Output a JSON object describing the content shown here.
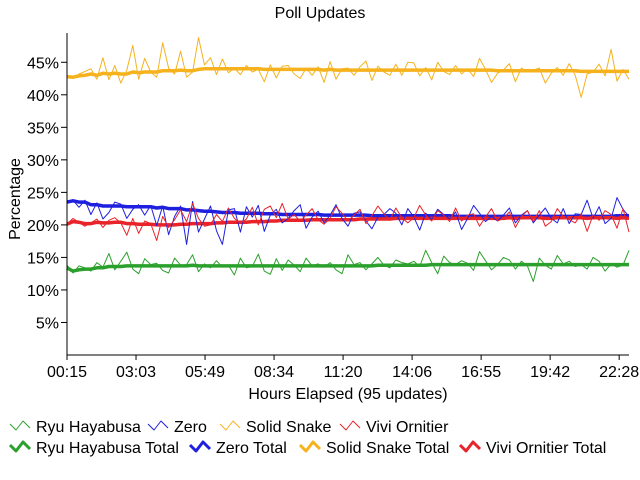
{
  "chart_data": {
    "type": "line",
    "title": "Poll Updates",
    "xlabel": "Hours Elapsed (95 updates)",
    "ylabel": "Percentage",
    "x_tick_labels": [
      "00:15",
      "03:03",
      "05:49",
      "08:34",
      "11:20",
      "14:06",
      "16:55",
      "19:42",
      "22:28"
    ],
    "y_tick_labels": [
      "5%",
      "10%",
      "15%",
      "20%",
      "25%",
      "30%",
      "35%",
      "40%",
      "45%"
    ],
    "y_tick_values": [
      5,
      10,
      15,
      20,
      25,
      30,
      35,
      40,
      45
    ],
    "ylim": [
      0,
      49.5
    ],
    "num_points": 95,
    "grid": false,
    "legend_position": "bottom",
    "series": [
      {
        "name": "Ryu Hayabusa",
        "kind": "update",
        "color": "#2ca02c",
        "icon": "thin-check-line",
        "values": [
          13.8,
          12.6,
          13.7,
          13.4,
          12.9,
          14.2,
          13.5,
          15.6,
          13.1,
          14.4,
          15.8,
          13.2,
          12.5,
          14.8,
          13.9,
          14.1,
          13.0,
          12.6,
          14.9,
          13.8,
          13.9,
          15.4,
          12.8,
          14.0,
          13.4,
          14.5,
          13.5,
          13.8,
          12.3,
          14.9,
          13.4,
          13.6,
          15.5,
          12.9,
          12.4,
          14.8,
          13.0,
          14.6,
          13.8,
          12.8,
          14.9,
          13.7,
          14.0,
          13.5,
          14.2,
          13.1,
          12.5,
          15.4,
          13.9,
          14.2,
          13.1,
          14.0,
          15.0,
          13.8,
          13.4,
          14.6,
          14.2,
          14.0,
          14.4,
          13.6,
          16.1,
          14.2,
          12.5,
          15.2,
          14.2,
          13.9,
          14.5,
          14.1,
          13.0,
          15.9,
          14.5,
          13.1,
          13.9,
          15.0,
          14.6,
          13.2,
          14.4,
          13.7,
          11.3,
          14.9,
          13.8,
          13.2,
          15.3,
          14.0,
          14.4,
          13.6,
          13.9,
          13.2,
          15.0,
          14.4,
          12.9,
          14.0,
          13.5,
          13.8,
          16.1
        ]
      },
      {
        "name": "Zero",
        "kind": "update",
        "color": "#1f1fe0",
        "icon": "thin-check-line",
        "values": [
          23.5,
          23.8,
          22.7,
          23.8,
          21.6,
          23.4,
          20.9,
          21.9,
          23.5,
          23.2,
          21.0,
          22.4,
          23.1,
          21.5,
          23.0,
          19.9,
          22.9,
          18.5,
          21.3,
          22.9,
          17.0,
          23.6,
          18.9,
          20.9,
          22.9,
          19.1,
          17.0,
          22.3,
          22.5,
          18.9,
          22.8,
          21.2,
          23.0,
          19.0,
          21.5,
          22.4,
          20.3,
          21.0,
          22.2,
          23.1,
          19.5,
          21.2,
          22.1,
          20.3,
          21.5,
          23.1,
          21.0,
          19.8,
          21.8,
          22.0,
          20.6,
          19.4,
          21.2,
          21.6,
          22.5,
          21.8,
          20.0,
          22.5,
          21.2,
          19.2,
          21.8,
          20.8,
          22.4,
          21.6,
          20.9,
          22.0,
          19.3,
          21.0,
          23.0,
          21.8,
          20.5,
          21.3,
          20.6,
          21.5,
          22.6,
          20.3,
          21.5,
          22.2,
          20.3,
          21.5,
          22.6,
          21.0,
          20.3,
          22.5,
          20.2,
          21.7,
          21.6,
          23.8,
          21.0,
          22.8,
          20.2,
          21.0,
          24.2,
          22.4,
          21.3
        ]
      },
      {
        "name": "Solid Snake",
        "kind": "update",
        "color": "#f5b21c",
        "icon": "thin-check-line",
        "values": [
          43.0,
          42.6,
          43.2,
          43.6,
          44.0,
          42.4,
          45.7,
          42.3,
          44.5,
          41.8,
          43.8,
          47.6,
          42.4,
          45.6,
          43.5,
          42.7,
          48.0,
          44.1,
          43.2,
          46.7,
          42.7,
          43.5,
          48.8,
          44.6,
          45.7,
          43.1,
          45.5,
          43.4,
          44.1,
          43.1,
          44.5,
          43.5,
          43.9,
          42.0,
          44.6,
          42.6,
          44.4,
          44.5,
          43.2,
          42.5,
          44.1,
          43.0,
          44.3,
          41.9,
          45.1,
          42.4,
          44.0,
          44.1,
          43.0,
          44.3,
          45.2,
          42.2,
          44.4,
          43.5,
          43.0,
          44.7,
          43.0,
          45.0,
          44.9,
          42.9,
          44.2,
          42.3,
          45.0,
          43.6,
          43.1,
          44.5,
          43.2,
          44.0,
          42.8,
          45.6,
          43.9,
          41.9,
          43.3,
          43.8,
          44.8,
          42.0,
          44.1,
          43.5,
          43.8,
          44.1,
          41.8,
          43.3,
          44.2,
          43.0,
          44.8,
          43.0,
          39.6,
          43.2,
          43.5,
          44.7,
          42.9,
          47.0,
          42.1,
          43.9,
          42.4
        ]
      },
      {
        "name": "Vivi Ornitier",
        "kind": "update",
        "color": "#e8232a",
        "icon": "thin-check-line",
        "values": [
          20.1,
          21.0,
          20.4,
          19.8,
          20.3,
          20.9,
          19.6,
          20.7,
          21.1,
          20.3,
          18.4,
          21.0,
          18.7,
          20.6,
          20.2,
          17.6,
          21.3,
          19.6,
          20.8,
          22.3,
          20.5,
          23.3,
          21.0,
          19.8,
          20.0,
          21.6,
          20.5,
          22.6,
          21.0,
          20.2,
          20.9,
          22.7,
          20.0,
          22.4,
          22.9,
          21.1,
          23.3,
          20.9,
          21.6,
          20.5,
          21.5,
          22.5,
          20.8,
          20.1,
          21.0,
          22.8,
          21.8,
          20.6,
          21.5,
          22.4,
          20.2,
          21.4,
          22.9,
          21.7,
          20.7,
          22.6,
          21.1,
          20.3,
          21.1,
          23.0,
          21.5,
          20.6,
          22.2,
          21.5,
          20.5,
          22.6,
          20.6,
          21.5,
          21.7,
          19.8,
          21.2,
          22.5,
          20.6,
          21.0,
          22.0,
          19.6,
          21.3,
          22.2,
          20.5,
          22.2,
          19.8,
          20.5,
          22.5,
          21.3,
          20.8,
          20.3,
          21.7,
          19.0,
          21.5,
          20.7,
          22.2,
          21.6,
          19.5,
          22.5,
          18.9
        ]
      },
      {
        "name": "Ryu Hayabusa Total",
        "kind": "total",
        "color": "#2ca02c",
        "icon": "thick-check-line",
        "values": [
          13.4,
          12.9,
          13.1,
          13.2,
          13.2,
          13.4,
          13.4,
          13.6,
          13.6,
          13.6,
          13.7,
          13.7,
          13.7,
          13.7,
          13.7,
          13.7,
          13.7,
          13.7,
          13.7,
          13.7,
          13.7,
          13.8,
          13.7,
          13.7,
          13.7,
          13.7,
          13.7,
          13.7,
          13.7,
          13.7,
          13.7,
          13.7,
          13.7,
          13.7,
          13.7,
          13.7,
          13.7,
          13.7,
          13.7,
          13.7,
          13.7,
          13.7,
          13.7,
          13.7,
          13.7,
          13.7,
          13.7,
          13.7,
          13.7,
          13.7,
          13.7,
          13.7,
          13.8,
          13.8,
          13.8,
          13.8,
          13.8,
          13.8,
          13.8,
          13.8,
          13.8,
          13.9,
          13.9,
          13.9,
          13.9,
          13.9,
          13.9,
          13.9,
          13.9,
          13.9,
          13.9,
          13.9,
          13.9,
          13.9,
          13.9,
          13.9,
          13.9,
          13.9,
          13.9,
          13.9,
          13.9,
          13.9,
          13.9,
          13.9,
          13.9,
          13.9,
          13.9,
          13.9,
          13.9,
          13.9,
          13.9,
          13.9,
          13.9,
          13.9,
          13.9
        ]
      },
      {
        "name": "Zero Total",
        "kind": "total",
        "color": "#1f1fe0",
        "icon": "thick-check-line",
        "values": [
          23.5,
          23.7,
          23.5,
          23.5,
          23.1,
          23.1,
          22.9,
          22.9,
          22.9,
          22.9,
          22.8,
          22.8,
          22.8,
          22.8,
          22.8,
          22.6,
          22.7,
          22.5,
          22.5,
          22.5,
          22.3,
          22.3,
          22.2,
          22.1,
          22.1,
          22.0,
          21.9,
          21.9,
          21.9,
          21.8,
          21.8,
          21.8,
          21.8,
          21.7,
          21.7,
          21.7,
          21.6,
          21.6,
          21.6,
          21.6,
          21.6,
          21.6,
          21.6,
          21.5,
          21.5,
          21.5,
          21.5,
          21.5,
          21.5,
          21.5,
          21.5,
          21.4,
          21.4,
          21.4,
          21.4,
          21.4,
          21.4,
          21.4,
          21.4,
          21.4,
          21.4,
          21.4,
          21.4,
          21.4,
          21.4,
          21.3,
          21.3,
          21.3,
          21.3,
          21.3,
          21.3,
          21.3,
          21.3,
          21.3,
          21.3,
          21.3,
          21.3,
          21.3,
          21.3,
          21.3,
          21.3,
          21.3,
          21.3,
          21.3,
          21.3,
          21.3,
          21.3,
          21.3,
          21.3,
          21.3,
          21.3,
          21.3,
          21.4,
          21.4,
          21.4
        ]
      },
      {
        "name": "Solid Snake Total",
        "kind": "total",
        "color": "#f5b21c",
        "icon": "thick-check-line",
        "values": [
          42.8,
          42.7,
          42.9,
          43.0,
          43.2,
          43.0,
          43.3,
          43.2,
          43.3,
          43.2,
          43.2,
          43.5,
          43.4,
          43.5,
          43.5,
          43.5,
          43.7,
          43.7,
          43.7,
          43.8,
          43.7,
          43.7,
          43.9,
          44.0,
          44.0,
          44.0,
          44.0,
          44.0,
          44.0,
          44.0,
          44.0,
          44.0,
          44.0,
          43.9,
          43.9,
          43.9,
          43.9,
          43.9,
          43.9,
          43.9,
          43.9,
          43.9,
          43.9,
          43.8,
          43.9,
          43.8,
          43.8,
          43.8,
          43.8,
          43.8,
          43.8,
          43.8,
          43.8,
          43.8,
          43.8,
          43.8,
          43.8,
          43.8,
          43.8,
          43.8,
          43.8,
          43.8,
          43.8,
          43.8,
          43.8,
          43.8,
          43.8,
          43.8,
          43.8,
          43.8,
          43.8,
          43.8,
          43.7,
          43.7,
          43.7,
          43.7,
          43.7,
          43.7,
          43.7,
          43.7,
          43.7,
          43.7,
          43.7,
          43.7,
          43.7,
          43.7,
          43.6,
          43.6,
          43.6,
          43.6,
          43.6,
          43.6,
          43.6,
          43.6,
          43.6
        ]
      },
      {
        "name": "Vivi Ornitier Total",
        "kind": "total",
        "color": "#e8232a",
        "icon": "thick-check-line",
        "values": [
          20.1,
          20.5,
          20.4,
          20.2,
          20.2,
          20.4,
          20.3,
          20.3,
          20.4,
          20.4,
          20.2,
          20.2,
          20.1,
          20.1,
          20.1,
          20.0,
          20.0,
          20.0,
          20.0,
          20.1,
          20.1,
          20.2,
          20.2,
          20.2,
          20.2,
          20.3,
          20.3,
          20.4,
          20.4,
          20.4,
          20.4,
          20.5,
          20.5,
          20.5,
          20.6,
          20.6,
          20.7,
          20.7,
          20.7,
          20.7,
          20.7,
          20.8,
          20.8,
          20.8,
          20.8,
          20.8,
          20.8,
          20.8,
          20.8,
          20.9,
          20.9,
          20.9,
          20.9,
          20.9,
          20.9,
          21.0,
          21.0,
          21.0,
          21.0,
          21.0,
          21.0,
          21.0,
          21.0,
          21.0,
          21.0,
          21.0,
          21.0,
          21.0,
          21.0,
          21.0,
          21.0,
          21.0,
          21.0,
          21.0,
          21.1,
          21.0,
          21.1,
          21.1,
          21.1,
          21.1,
          21.0,
          21.0,
          21.1,
          21.1,
          21.1,
          21.1,
          21.1,
          21.0,
          21.1,
          21.1,
          21.1,
          21.1,
          21.0,
          21.1,
          21.0
        ]
      }
    ]
  }
}
